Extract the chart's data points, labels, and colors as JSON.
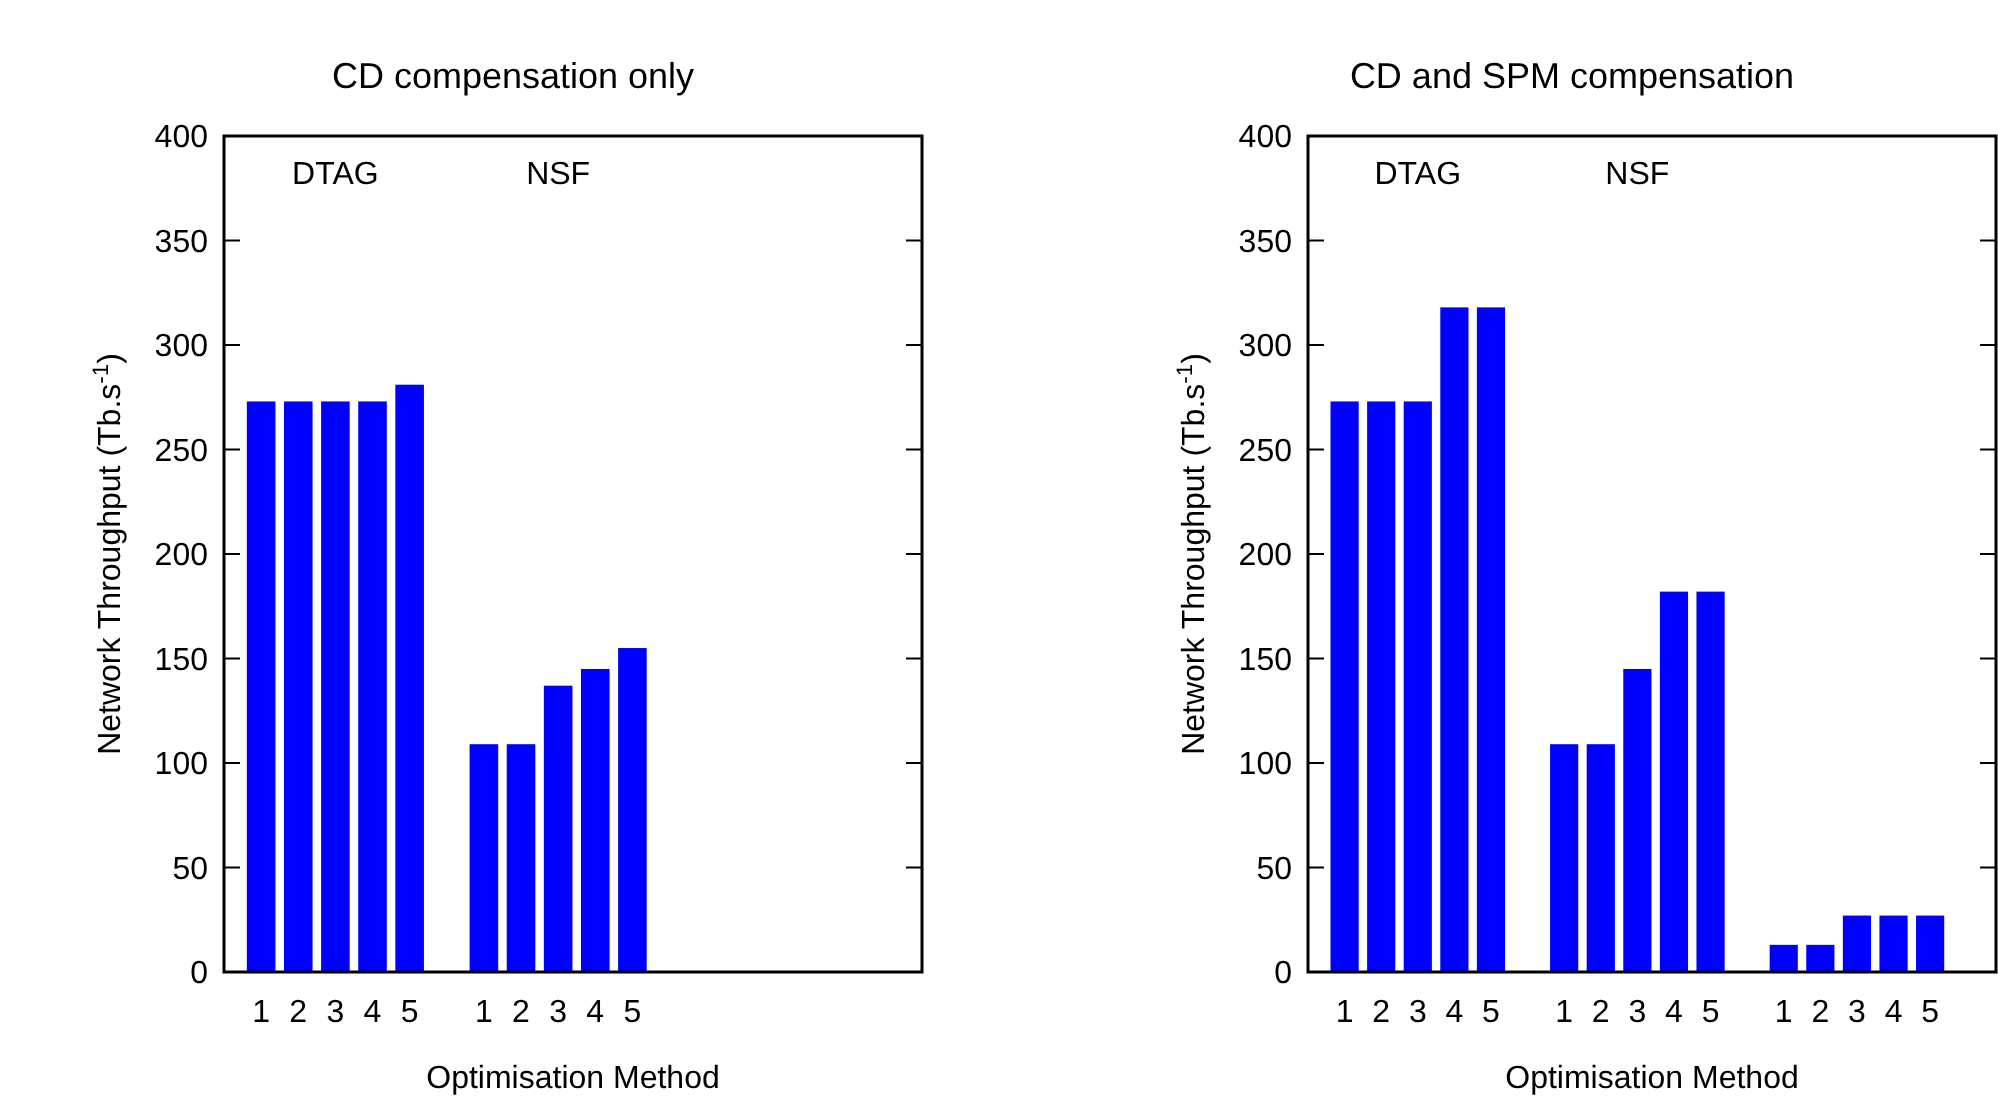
{
  "chart_data": [
    {
      "type": "bar",
      "title": "CD compensation only",
      "xlabel": "Optimisation Method",
      "ylabel": "Network Throughput (Tb.s$^{-1}$)",
      "categories": [
        "1",
        "2",
        "3",
        "4",
        "5",
        null,
        "1",
        "2",
        "3",
        "4",
        "5",
        null,
        null,
        null,
        null,
        null,
        null
      ],
      "values": [
        273,
        273,
        273,
        273,
        281,
        null,
        109,
        109,
        137,
        145,
        155,
        null,
        null,
        null,
        null,
        null,
        null
      ],
      "color": "#0000ff",
      "ylim": [
        0,
        400
      ],
      "yticks": [
        0,
        50,
        100,
        150,
        200,
        250,
        300,
        350,
        400
      ],
      "annotations": [
        "DTAG",
        "NSF"
      ]
    },
    {
      "type": "bar",
      "title": "CD and SPM compensation",
      "xlabel": "Optimisation Method",
      "ylabel": "Network Throughput (Tb.s$^{-1}$)",
      "categories": [
        "1",
        "2",
        "3",
        "4",
        "5",
        null,
        "1",
        "2",
        "3",
        "4",
        "5",
        null,
        "1",
        "2",
        "3",
        "4",
        "5"
      ],
      "values": [
        273,
        273,
        273,
        318,
        318,
        null,
        109,
        109,
        145,
        182,
        182,
        null,
        13,
        13,
        27,
        27,
        27
      ],
      "color": "#0000ff",
      "ylim": [
        0,
        400
      ],
      "yticks": [
        0,
        50,
        100,
        150,
        200,
        250,
        300,
        350,
        400
      ],
      "annotations": [
        "DTAG",
        "NSF"
      ]
    }
  ]
}
